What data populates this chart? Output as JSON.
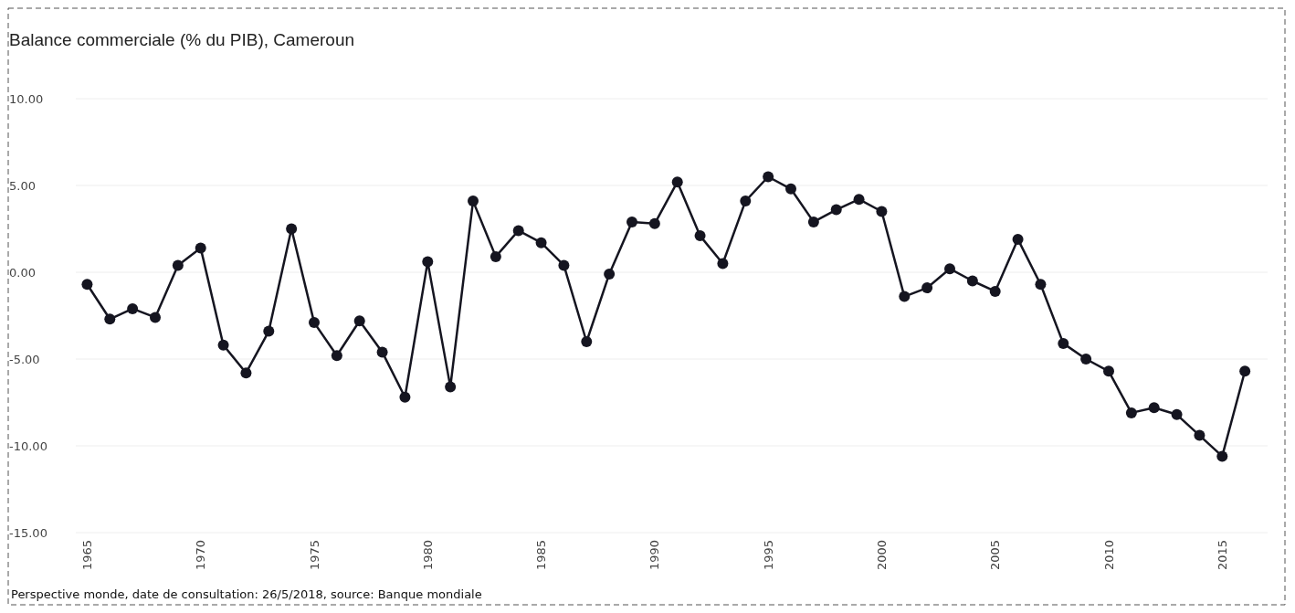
{
  "chart_data": {
    "type": "line",
    "title": "Balance commerciale (% du PIB), Cameroun",
    "x": [
      1965,
      1966,
      1967,
      1968,
      1969,
      1970,
      1971,
      1972,
      1973,
      1974,
      1975,
      1976,
      1977,
      1978,
      1979,
      1980,
      1981,
      1982,
      1983,
      1984,
      1985,
      1986,
      1987,
      1988,
      1989,
      1990,
      1991,
      1992,
      1993,
      1994,
      1995,
      1996,
      1997,
      1998,
      1999,
      2000,
      2001,
      2002,
      2003,
      2004,
      2005,
      2006,
      2007,
      2008,
      2009,
      2010,
      2011,
      2012,
      2013,
      2014,
      2015,
      2016
    ],
    "series": [
      {
        "color": "#151520",
        "values": [
          -0.7,
          -2.7,
          -2.1,
          -2.6,
          0.4,
          1.4,
          -4.2,
          -5.8,
          -3.4,
          2.5,
          -2.9,
          -4.8,
          -2.8,
          -4.6,
          -7.2,
          0.6,
          -6.6,
          4.1,
          0.9,
          2.4,
          1.7,
          0.4,
          -4.0,
          -0.1,
          2.9,
          2.8,
          5.2,
          2.1,
          0.5,
          4.1,
          5.5,
          4.8,
          2.9,
          3.6,
          4.2,
          3.5,
          -1.4,
          -0.9,
          0.2,
          -0.5,
          -1.1,
          1.9,
          -0.7,
          -4.1,
          -5.0,
          -5.7,
          -8.1,
          -7.8,
          -8.2,
          -9.4,
          -10.6,
          -5.7
        ]
      }
    ],
    "xlim": [
      1964.5,
      2017
    ],
    "xticks": [
      1965,
      1970,
      1975,
      1980,
      1985,
      1990,
      1995,
      2000,
      2005,
      2010,
      2015
    ],
    "ylim": [
      -15,
      10
    ],
    "yticks": [
      {
        "value": -15,
        "label": "-15.00"
      },
      {
        "value": -10,
        "label": "-10.00"
      },
      {
        "value": -5,
        "label": "-5.00"
      },
      {
        "value": 0,
        "label": "0.00"
      },
      {
        "value": 5,
        "label": "5.00"
      },
      {
        "value": 10,
        "label": "10.00"
      }
    ],
    "grid": "y",
    "marker": "circle",
    "line_style": "solid",
    "annotations": [
      "Perspective monde, date de consultation: 26/5/2018, source: Banque mondiale"
    ]
  }
}
